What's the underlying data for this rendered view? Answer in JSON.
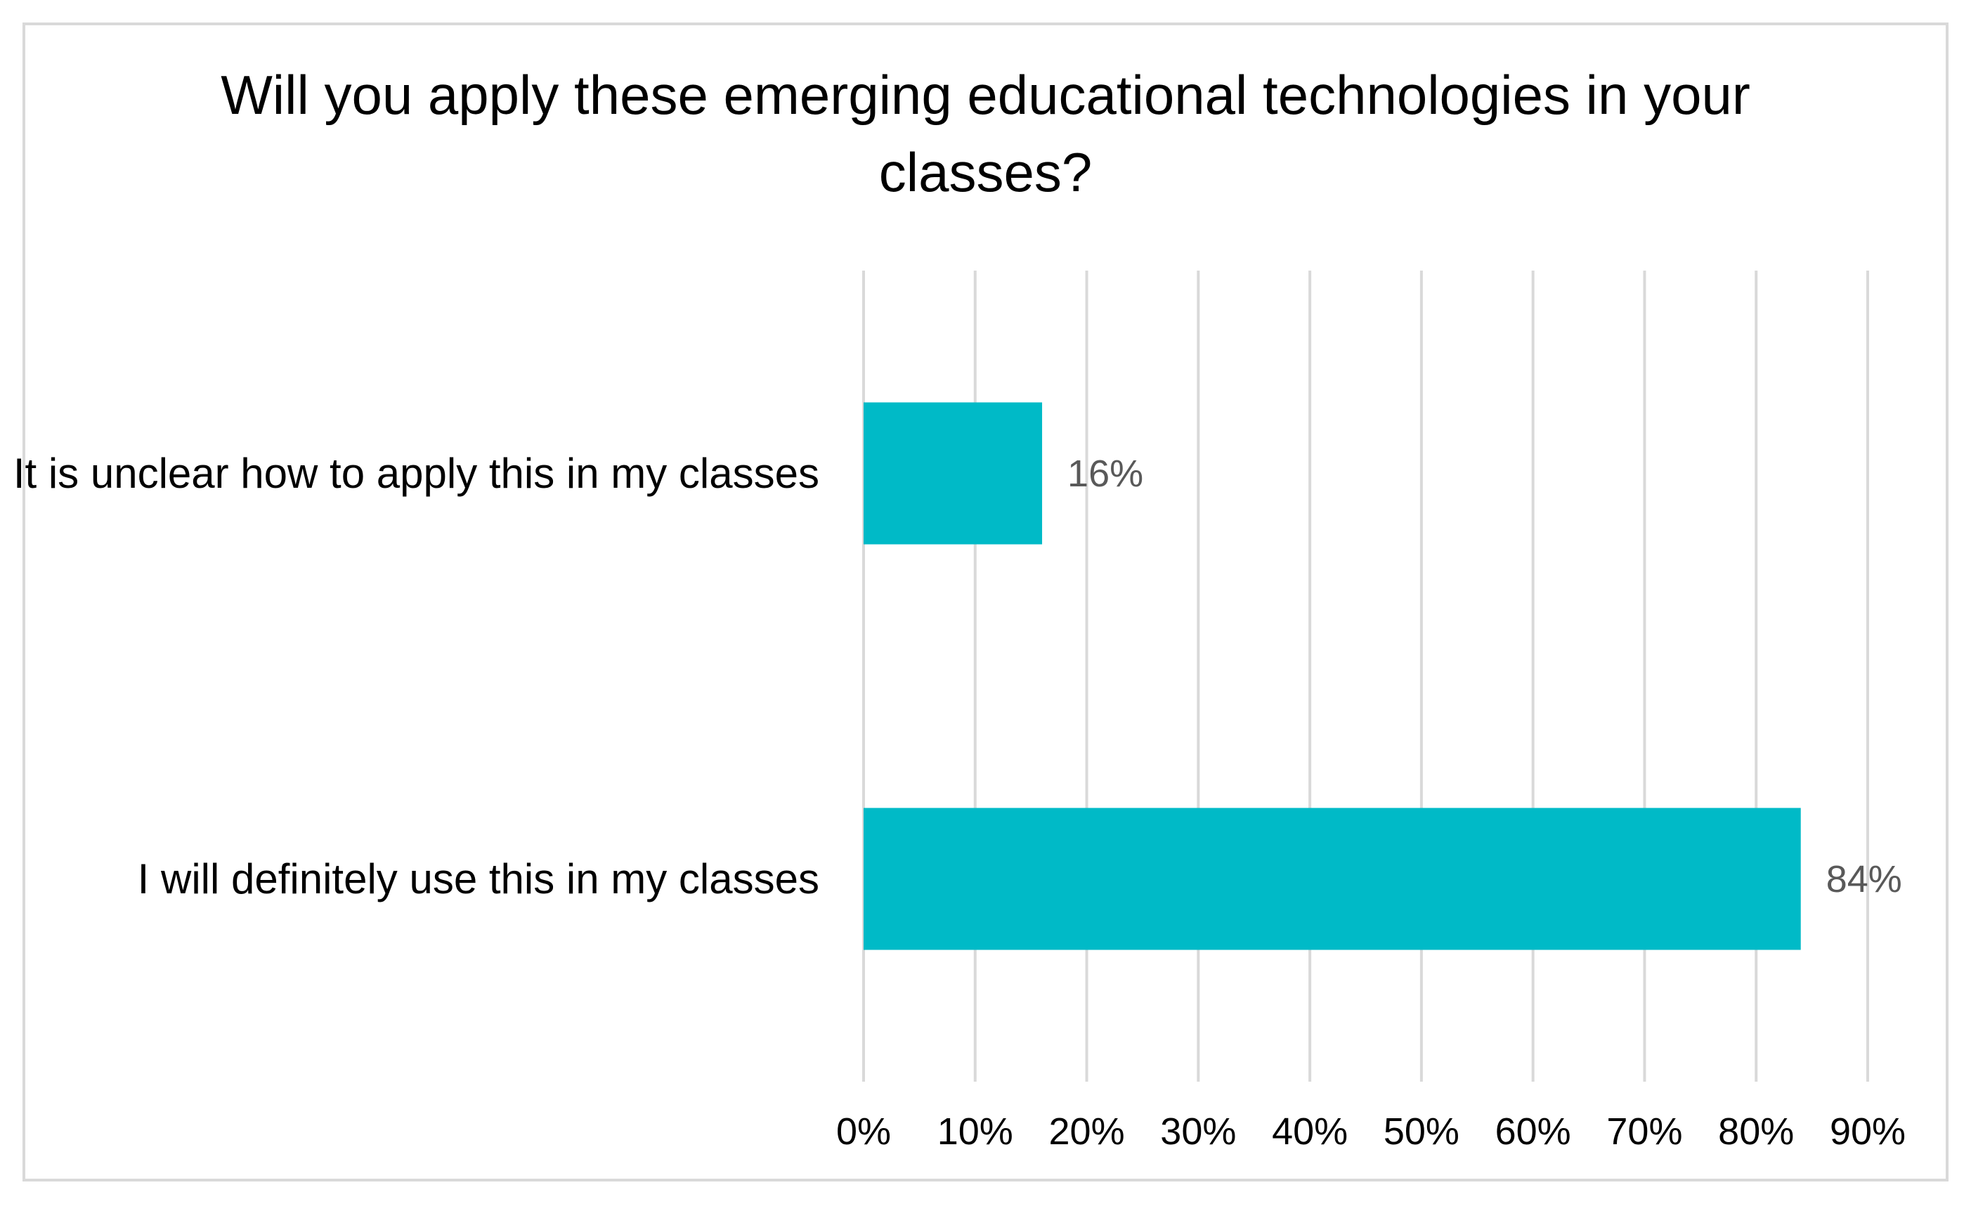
{
  "chart_data": {
    "type": "bar",
    "orientation": "horizontal",
    "title": "Will you apply these emerging educational technologies in your classes?",
    "categories": [
      "It is unclear how to apply this in my classes",
      "I will definitely use this in my classes"
    ],
    "values": [
      16,
      84
    ],
    "value_labels": [
      "16%",
      "84%"
    ],
    "color": "#00bac7",
    "xlim": [
      0,
      90
    ],
    "xticks": [
      {
        "value": 0,
        "label": "0%"
      },
      {
        "value": 10,
        "label": "10%"
      },
      {
        "value": 20,
        "label": "20%"
      },
      {
        "value": 30,
        "label": "30%"
      },
      {
        "value": 40,
        "label": "40%"
      },
      {
        "value": 50,
        "label": "50%"
      },
      {
        "value": 60,
        "label": "60%"
      },
      {
        "value": 70,
        "label": "70%"
      },
      {
        "value": 80,
        "label": "80%"
      },
      {
        "value": 90,
        "label": "90%"
      }
    ],
    "grid": true
  }
}
